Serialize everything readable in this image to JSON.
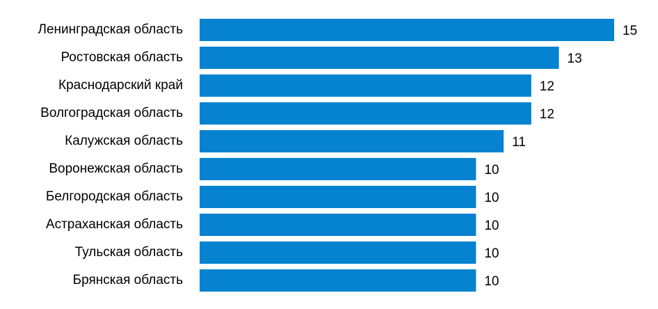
{
  "chart_data": {
    "type": "hbar",
    "categories": [
      "Ленинградская область",
      "Ростовская область",
      "Краснодарский край",
      "Волгоградская область",
      "Калужская область",
      "Воронежская область",
      "Белгородская область",
      "Астраханская область",
      "Тульская область",
      "Брянская область"
    ],
    "values": [
      15,
      13,
      12,
      12,
      11,
      10,
      10,
      10,
      10,
      10
    ],
    "color": "#0582d0"
  }
}
